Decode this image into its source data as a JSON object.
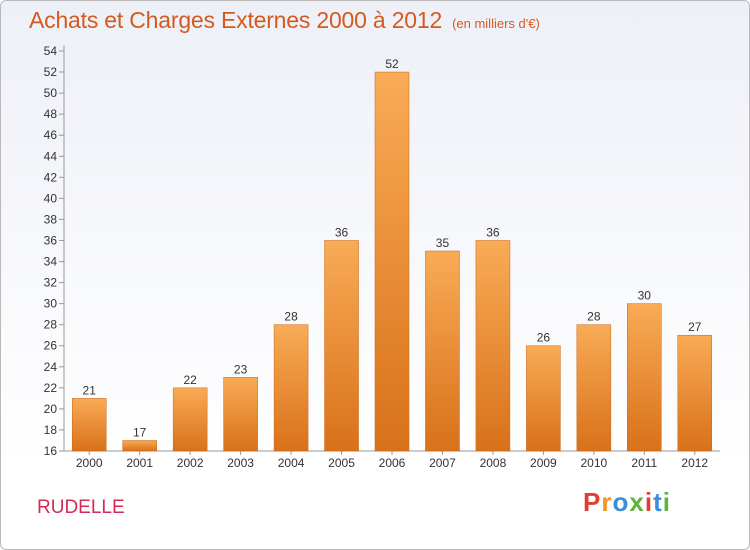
{
  "title": "Achats et Charges Externes 2000 à 2012",
  "unit_label": "(en milliers d'€)",
  "place": "RUDELLE",
  "logo": {
    "text": "Proxiti",
    "colors": [
      "#e53c2e",
      "#f7941d",
      "#3a8fd8",
      "#5db43b",
      "#e53c2e",
      "#3a8fd8",
      "#5db43b"
    ]
  },
  "colors": {
    "bar_light": "#f7a650",
    "bar_dark": "#d9731a",
    "title": "#d45a1e",
    "place": "#d52a5a"
  },
  "chart_data": {
    "type": "bar",
    "title": "Achats et Charges Externes 2000 à 2012",
    "subtitle": "(en milliers d'€)",
    "categories": [
      "2000",
      "2001",
      "2002",
      "2003",
      "2004",
      "2005",
      "2006",
      "2007",
      "2008",
      "2009",
      "2010",
      "2011",
      "2012"
    ],
    "values": [
      21,
      17,
      22,
      23,
      28,
      36,
      52,
      35,
      36,
      26,
      28,
      30,
      27
    ],
    "xlabel": "",
    "ylabel": "",
    "ylim": [
      16,
      54
    ],
    "ytick_step": 2,
    "grid": false,
    "data_labels": true
  }
}
